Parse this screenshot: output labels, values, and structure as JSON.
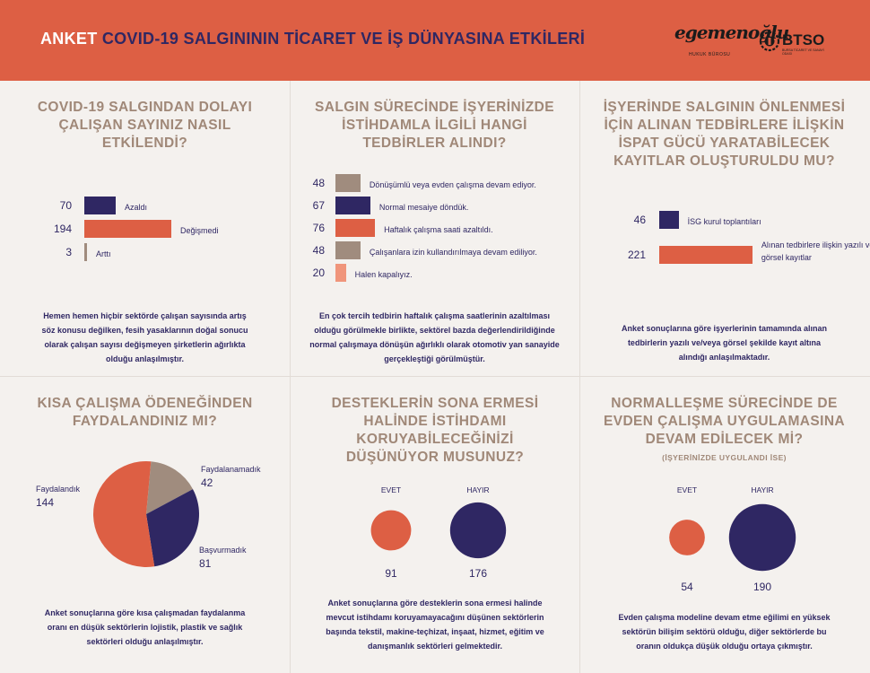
{
  "header": {
    "prefix": "ANKET",
    "title": "COVID-19 SALGINININ TİCARET VE İŞ DÜNYASINA ETKİLERİ",
    "logo1_text": "egemenoğlu",
    "logo1_sub": "HUKUK BÜROSU",
    "logo2_text": "BTSO",
    "logo2_sub": "BURSA TİCARET VE SANAYİ ODASI"
  },
  "colors": {
    "orange": "#dd5f44",
    "purple": "#2f2763",
    "taupe": "#a08c7e",
    "salmon": "#f0957b",
    "title": "#a08878"
  },
  "panels": [
    {
      "title": "COVID-19 SALGINDAN DOLAYI ÇALIŞAN SAYINIZ NASIL ETKİLENDİ?",
      "description": "Hemen hemen hiçbir sektörde çalışan sayısında artış söz konusu değilken, fesih yasaklarının doğal sonucu olarak çalışan sayısı değişmeyen şirketlerin ağırlıkta olduğu anlaşılmıştır."
    },
    {
      "title": "SALGIN SÜRECİNDE İŞYERİNİZDE İSTİHDAMLA İLGİLİ HANGİ TEDBİRLER ALINDI?",
      "description": "En çok tercih tedbirin haftalık çalışma saatlerinin azaltılması olduğu görülmekle birlikte, sektörel bazda değerlendirildiğinde normal çalışmaya dönüşün ağırlıklı olarak otomotiv yan sanayide gerçekleştiği görülmüştür."
    },
    {
      "title": "İŞYERİNDE SALGININ ÖNLENMESİ İÇİN ALINAN TEDBİRLERE İLİŞKİN İSPAT GÜCÜ YARATABİLECEK KAYITLAR OLUŞTURULDU MU?",
      "description": "Anket sonuçlarına göre işyerlerinin tamamında alınan tedbirlerin yazılı ve/veya görsel şekilde kayıt altına alındığı anlaşılmaktadır."
    },
    {
      "title": "KISA ÇALIŞMA ÖDENEĞİNDEN FAYDALANDINIZ MI?",
      "description": "Anket sonuçlarına göre kısa çalışmadan faydalanma oranı en düşük sektörlerin lojistik, plastik ve sağlık sektörleri olduğu anlaşılmıştır."
    },
    {
      "title": "DESTEKLERİN SONA ERMESİ HALİNDE İSTİHDAMI KORUYABİLECEĞİNİZİ DÜŞÜNÜYOR MUSUNUZ?",
      "description": "Anket sonuçlarına göre desteklerin sona ermesi halinde mevcut istihdamı koruyamayacağını düşünen sektörlerin başında tekstil, makine-teçhizat, inşaat, hizmet, eğitim ve danışmanlık sektörleri gelmektedir."
    },
    {
      "title": "NORMALLEŞME SÜRECİNDE DE EVDEN ÇALIŞMA UYGULAMASINA DEVAM EDİLECEK Mİ?",
      "subtitle": "(İŞYERİNİZDE UYGULANDI İSE)",
      "description": "Evden çalışma modeline devam etme eğilimi en yüksek sektörün bilişim sektörü olduğu, diğer sektörlerde bu oranın oldukça düşük olduğu ortaya çıkmıştır."
    }
  ],
  "chart_data": [
    {
      "type": "bar",
      "orientation": "horizontal",
      "categories": [
        "Azaldı",
        "Değişmedi",
        "Arttı"
      ],
      "values": [
        70,
        194,
        3
      ],
      "colors": [
        "#2f2763",
        "#dd5f44",
        "#a08c7e"
      ]
    },
    {
      "type": "bar",
      "orientation": "horizontal",
      "categories": [
        "Dönüşümlü veya evden çalışma devam ediyor.",
        "Normal mesaiye döndük.",
        "Haftalık çalışma saati azaltıldı.",
        "Çalışanlara izin kullandırılmaya devam ediliyor.",
        "Halen kapalıyız."
      ],
      "values": [
        48,
        67,
        76,
        48,
        20
      ],
      "colors": [
        "#a08c7e",
        "#2f2763",
        "#dd5f44",
        "#a08c7e",
        "#f0957b"
      ]
    },
    {
      "type": "bar",
      "orientation": "horizontal",
      "categories": [
        "İSG kurul toplantıları",
        "Alınan tedbirlere ilişkin yazılı ve görsel kayıtlar"
      ],
      "values": [
        46,
        221
      ],
      "colors": [
        "#2f2763",
        "#dd5f44"
      ]
    },
    {
      "type": "pie",
      "categories": [
        "Faydalandık",
        "Faydalanamadık",
        "Başvurmadık"
      ],
      "values": [
        144,
        42,
        81
      ],
      "colors": [
        "#dd5f44",
        "#a08c7e",
        "#2f2763"
      ]
    },
    {
      "type": "bubble",
      "categories": [
        "EVET",
        "HAYIR"
      ],
      "values": [
        91,
        176
      ],
      "colors": [
        "#dd5f44",
        "#2f2763"
      ]
    },
    {
      "type": "bubble",
      "categories": [
        "EVET",
        "HAYIR"
      ],
      "values": [
        54,
        190
      ],
      "colors": [
        "#dd5f44",
        "#2f2763"
      ]
    }
  ]
}
